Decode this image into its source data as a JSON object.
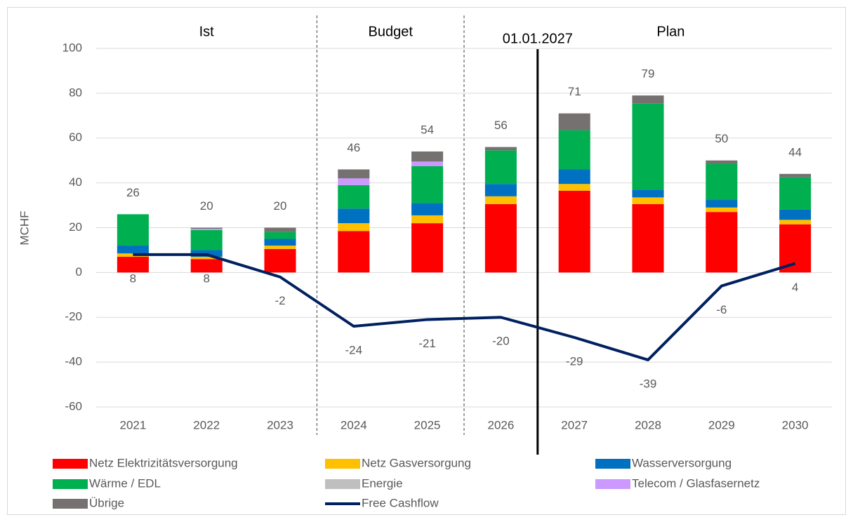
{
  "chart_data": {
    "type": "bar",
    "stacked": true,
    "y_label": "MCHF",
    "categories": [
      "2021",
      "2022",
      "2023",
      "2024",
      "2025",
      "2026",
      "2027",
      "2028",
      "2029",
      "2030"
    ],
    "sections": [
      "Ist",
      "Budget",
      "Plan"
    ],
    "annotation": "01.01.2027",
    "ylim": [
      -60,
      100
    ],
    "yticks": [
      -60,
      -40,
      -20,
      0,
      20,
      40,
      60,
      80,
      100
    ],
    "grid": true,
    "series": [
      {
        "name": "Netz Elektrizitätsversorgung",
        "color": "#ff0000",
        "values": [
          7,
          6,
          10.5,
          18.5,
          22,
          30.5,
          36.5,
          30.5,
          27,
          21.5
        ]
      },
      {
        "name": "Netz Gasversorgung",
        "color": "#ffc000",
        "values": [
          1.5,
          1,
          1.5,
          3.5,
          3.5,
          3.5,
          3,
          3,
          2,
          2
        ]
      },
      {
        "name": "Wasserversorgung",
        "color": "#0070c0",
        "values": [
          3.5,
          3,
          3,
          6.5,
          5.5,
          5.5,
          6.5,
          3.5,
          3.5,
          4.5
        ]
      },
      {
        "name": "Wärme / EDL",
        "color": "#00b050",
        "values": [
          14,
          9,
          3,
          10.5,
          16.5,
          15,
          17.5,
          38.5,
          16,
          14.5
        ]
      },
      {
        "name": "Energie",
        "color": "#bfbfbf",
        "values": [
          0,
          0,
          0,
          0,
          0,
          0,
          0,
          0,
          0,
          0
        ]
      },
      {
        "name": "Telecom / Glasfasernetz",
        "color": "#cc99ff",
        "values": [
          0,
          0.5,
          0,
          3,
          2,
          0,
          0,
          0,
          0,
          0
        ]
      },
      {
        "name": "Übrige",
        "color": "#767171",
        "values": [
          0,
          0.5,
          2,
          4,
          4.5,
          1.5,
          7.5,
          3.5,
          1.5,
          1.5
        ]
      }
    ],
    "totals": [
      26,
      20,
      20,
      46,
      54,
      56,
      71,
      79,
      50,
      44
    ],
    "line_series": {
      "name": "Free Cashflow",
      "color": "#002060",
      "values": [
        8,
        8,
        -2,
        -24,
        -21,
        -20,
        -29,
        -39,
        -6,
        4
      ]
    }
  }
}
